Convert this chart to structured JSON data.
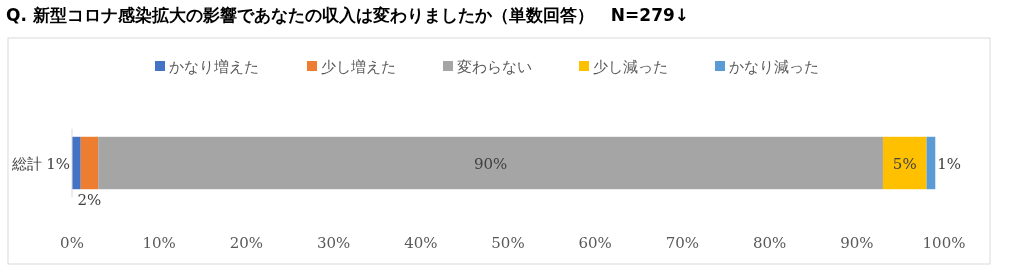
{
  "chart_data": {
    "type": "bar",
    "orientation": "horizontal",
    "stacked": true,
    "title": "Q. 新型コロナ感染拡大の影響であなたの収入は変わりましたか（単数回答）　N=279↓",
    "categories": [
      "総計"
    ],
    "series": [
      {
        "name": "かなり増えた",
        "color": "#4472c4",
        "values": [
          1
        ],
        "value_labels": [
          "1%"
        ]
      },
      {
        "name": "少し増えた",
        "color": "#ed7d31",
        "values": [
          2
        ],
        "value_labels": [
          "2%"
        ]
      },
      {
        "name": "変わらない",
        "color": "#a5a5a5",
        "values": [
          90
        ],
        "value_labels": [
          "90%"
        ]
      },
      {
        "name": "少し減った",
        "color": "#ffc000",
        "values": [
          5
        ],
        "value_labels": [
          "5%"
        ]
      },
      {
        "name": "かなり減った",
        "color": "#5b9bd5",
        "values": [
          1
        ],
        "value_labels": [
          "1%"
        ]
      }
    ],
    "xlim": [
      0,
      100
    ],
    "xticks": [
      {
        "value": 0,
        "label": "0%"
      },
      {
        "value": 10,
        "label": "10%"
      },
      {
        "value": 20,
        "label": "20%"
      },
      {
        "value": 30,
        "label": "30%"
      },
      {
        "value": 40,
        "label": "40%"
      },
      {
        "value": 50,
        "label": "50%"
      },
      {
        "value": 60,
        "label": "60%"
      },
      {
        "value": 70,
        "label": "70%"
      },
      {
        "value": 80,
        "label": "80%"
      },
      {
        "value": 90,
        "label": "90%"
      },
      {
        "value": 100,
        "label": "100%"
      }
    ],
    "legend": "top"
  }
}
